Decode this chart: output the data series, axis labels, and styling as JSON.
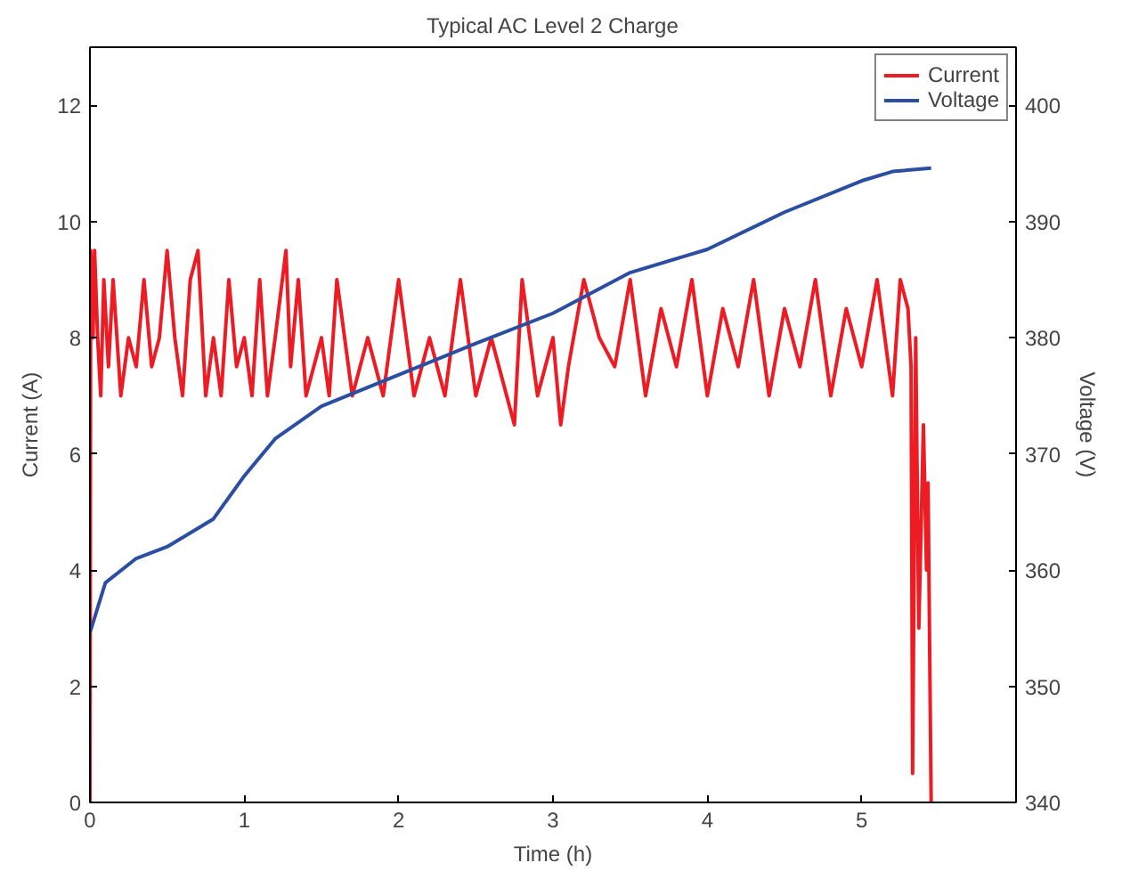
{
  "chart_data": {
    "type": "line",
    "title": "Typical AC Level 2 Charge",
    "xlabel": "Time (h)",
    "ylabel": "Current (A)",
    "y2label": "Voltage (V)",
    "xlim": [
      0,
      6
    ],
    "xticks": [
      0,
      1,
      2,
      3,
      4,
      5
    ],
    "ylim": [
      0,
      13
    ],
    "yticks": [
      0,
      2,
      4,
      6,
      8,
      10,
      12
    ],
    "y2lim": [
      340,
      405
    ],
    "y2ticks": [
      340,
      350,
      360,
      370,
      380,
      390,
      400
    ],
    "grid": false,
    "legend": "top right",
    "line_style": "solid",
    "series": [
      {
        "name": "Current",
        "color": "#ed1c24",
        "x": [
          0,
          0.005,
          0.02,
          0.03,
          0.05,
          0.07,
          0.09,
          0.12,
          0.15,
          0.2,
          0.25,
          0.3,
          0.35,
          0.4,
          0.45,
          0.5,
          0.55,
          0.6,
          0.65,
          0.7,
          0.75,
          0.8,
          0.85,
          0.9,
          0.95,
          1.0,
          1.05,
          1.1,
          1.15,
          1.2,
          1.27,
          1.3,
          1.35,
          1.4,
          1.5,
          1.55,
          1.6,
          1.7,
          1.8,
          1.9,
          2.0,
          2.1,
          2.2,
          2.3,
          2.4,
          2.5,
          2.6,
          2.7,
          2.75,
          2.8,
          2.9,
          3.0,
          3.05,
          3.1,
          3.2,
          3.3,
          3.4,
          3.5,
          3.6,
          3.7,
          3.8,
          3.9,
          4.0,
          4.1,
          4.2,
          4.3,
          4.4,
          4.5,
          4.6,
          4.7,
          4.8,
          4.9,
          5.0,
          5.1,
          5.2,
          5.25,
          5.3,
          5.32,
          5.33,
          5.35,
          5.37,
          5.4,
          5.42,
          5.43,
          5.45
        ],
        "values": [
          0,
          9.5,
          8,
          9.5,
          8,
          7,
          9,
          7.5,
          9,
          7,
          8,
          7.5,
          9,
          7.5,
          8,
          9.5,
          8,
          7,
          9,
          9.5,
          7,
          8,
          7,
          9,
          7.5,
          8,
          7,
          9,
          7,
          8,
          9.5,
          7.5,
          9,
          7,
          8,
          7,
          9,
          7,
          8,
          7,
          9,
          7,
          8,
          7,
          9,
          7,
          8,
          7,
          6.5,
          9,
          7,
          8,
          6.5,
          7.5,
          9,
          8,
          7.5,
          9,
          7,
          8.5,
          7.5,
          9,
          7,
          8.5,
          7.5,
          9,
          7,
          8.5,
          7.5,
          9,
          7,
          8.5,
          7.5,
          9,
          7,
          9,
          8.5,
          7.5,
          0.5,
          8,
          3,
          6.5,
          4,
          5.5,
          0
        ]
      },
      {
        "name": "Voltage",
        "color": "#2b4ea2",
        "axis": "y2",
        "x": [
          0,
          0.1,
          0.3,
          0.5,
          0.8,
          1.0,
          1.2,
          1.5,
          2.0,
          2.5,
          3.0,
          3.5,
          4.0,
          4.5,
          5.0,
          5.2,
          5.45
        ],
        "values": [
          354.6,
          358.9,
          361,
          362,
          364.4,
          368.1,
          371.3,
          374.1,
          376.8,
          379.5,
          382.1,
          385.6,
          387.6,
          390.8,
          393.5,
          394.3,
          394.6
        ]
      }
    ]
  }
}
